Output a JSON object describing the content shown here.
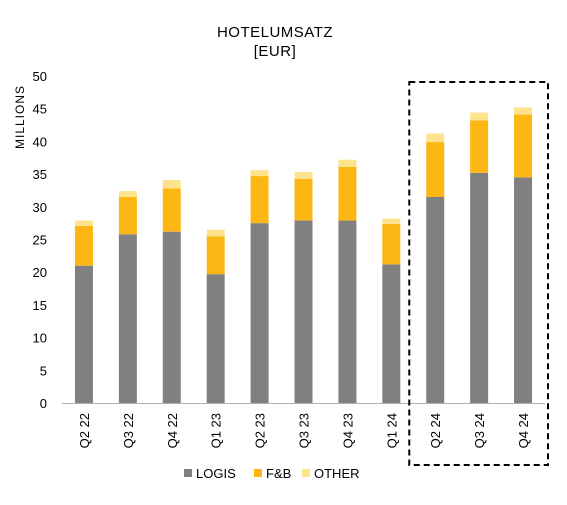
{
  "chart_data": {
    "type": "bar",
    "stacked": true,
    "title": "HOTELUMSATZ",
    "subtitle": "[EUR]",
    "ylabel": "MILLIONS",
    "xlabel": "",
    "ylim": [
      0,
      50
    ],
    "yticks": [
      "0",
      "5",
      "10",
      "15",
      "20",
      "25",
      "30",
      "35",
      "40",
      "45",
      "50"
    ],
    "grid": false,
    "legend_position": "bottom",
    "categories": [
      "Q2 22",
      "Q3 22",
      "Q4 22",
      "Q1 23",
      "Q2 23",
      "Q3 23",
      "Q4 23",
      "Q1 24",
      "Q2 24",
      "Q3 24",
      "Q4 24"
    ],
    "series": [
      {
        "name": "LOGIS",
        "color": "#808080",
        "values": [
          21.0,
          25.8,
          26.2,
          19.7,
          27.5,
          27.9,
          27.9,
          21.2,
          31.5,
          35.2,
          34.5
        ]
      },
      {
        "name": "F&B",
        "color": "#fdb714",
        "values": [
          6.1,
          5.7,
          6.6,
          5.8,
          7.2,
          6.4,
          8.2,
          6.2,
          8.4,
          8.0,
          9.6
        ]
      },
      {
        "name": "OTHER",
        "color": "#fde38c",
        "values": [
          0.8,
          0.9,
          1.3,
          1.0,
          0.9,
          1.0,
          1.1,
          0.8,
          1.3,
          1.2,
          1.1
        ]
      }
    ],
    "highlight": {
      "style": "dashed-box",
      "categories": [
        "Q2 24",
        "Q3 24",
        "Q4 24"
      ]
    }
  }
}
